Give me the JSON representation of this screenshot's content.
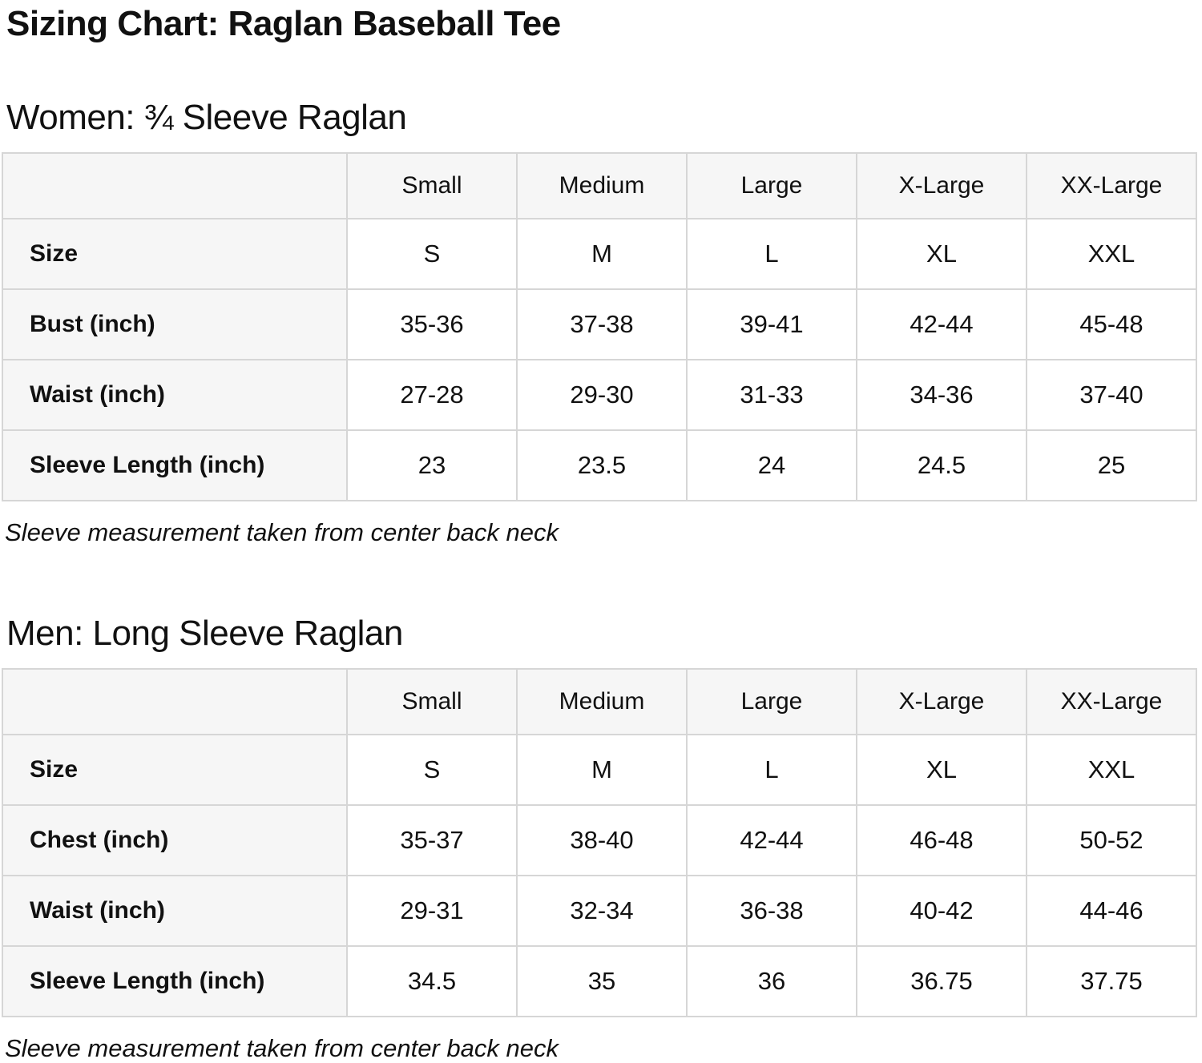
{
  "page": {
    "title": "Sizing Chart: Raglan Baseball Tee"
  },
  "colors": {
    "header_cell_bg": "#f6f6f6",
    "table_border": "#d6d6d6",
    "text": "#111111"
  },
  "women": {
    "heading": "Women: ¾ Sleeve Raglan",
    "note": "Sleeve measurement taken from center back neck",
    "table": {
      "columns": [
        "",
        "Small",
        "Medium",
        "Large",
        "X-Large",
        "XX-Large"
      ],
      "rows": [
        {
          "label": "Size",
          "values": [
            "S",
            "M",
            "L",
            "XL",
            "XXL"
          ]
        },
        {
          "label": "Bust (inch)",
          "values": [
            "35-36",
            "37-38",
            "39-41",
            "42-44",
            "45-48"
          ]
        },
        {
          "label": "Waist (inch)",
          "values": [
            "27-28",
            "29-30",
            "31-33",
            "34-36",
            "37-40"
          ]
        },
        {
          "label": "Sleeve Length (inch)",
          "values": [
            "23",
            "23.5",
            "24",
            "24.5",
            "25"
          ]
        }
      ]
    }
  },
  "men": {
    "heading": "Men: Long Sleeve Raglan",
    "note": "Sleeve measurement taken from center back neck",
    "table": {
      "columns": [
        "",
        "Small",
        "Medium",
        "Large",
        "X-Large",
        "XX-Large"
      ],
      "rows": [
        {
          "label": "Size",
          "values": [
            "S",
            "M",
            "L",
            "XL",
            "XXL"
          ]
        },
        {
          "label": "Chest (inch)",
          "values": [
            "35-37",
            "38-40",
            "42-44",
            "46-48",
            "50-52"
          ]
        },
        {
          "label": "Waist (inch)",
          "values": [
            "29-31",
            "32-34",
            "36-38",
            "40-42",
            "44-46"
          ]
        },
        {
          "label": "Sleeve Length (inch)",
          "values": [
            "34.5",
            "35",
            "36",
            "36.75",
            "37.75"
          ]
        }
      ]
    }
  }
}
